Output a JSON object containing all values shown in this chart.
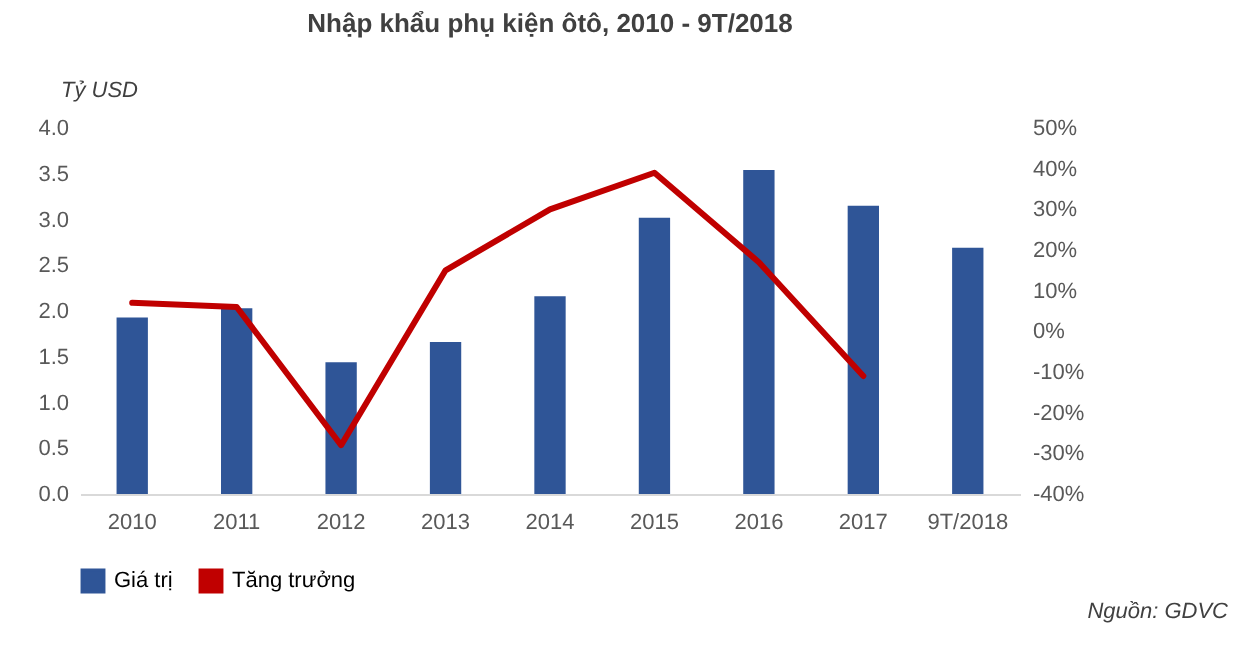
{
  "chart_data": {
    "type": "bar",
    "title": "Nhập khẩu phụ kiện ôtô, 2010 - 9T/2018",
    "ylabel": "Tỷ USD",
    "categories": [
      "2010",
      "2011",
      "2012",
      "2013",
      "2014",
      "2015",
      "2016",
      "2017",
      "9T/2018"
    ],
    "series": [
      {
        "name": "Giá trị",
        "color": "#2f5597",
        "values": [
          1.93,
          2.03,
          1.44,
          1.66,
          2.16,
          3.02,
          3.54,
          3.15,
          2.69
        ]
      },
      {
        "name": "Tăng trưởng",
        "type": "line",
        "axis": "y2",
        "color": "#c00000",
        "values": [
          7,
          6,
          -28,
          15,
          30,
          39,
          17,
          -11,
          null
        ]
      }
    ],
    "ylim": [
      0,
      4
    ],
    "yticks": [
      {
        "value": 0,
        "label": "0.0"
      },
      {
        "value": 0.5,
        "label": "0.5"
      },
      {
        "value": 1,
        "label": "1.0"
      },
      {
        "value": 1.5,
        "label": "1.5"
      },
      {
        "value": 2,
        "label": "2.0"
      },
      {
        "value": 2.5,
        "label": "2.5"
      },
      {
        "value": 3,
        "label": "3.0"
      },
      {
        "value": 3.5,
        "label": "3.5"
      },
      {
        "value": 4,
        "label": "4.0"
      }
    ],
    "y2lim": [
      -40,
      50
    ],
    "y2ticks": [
      {
        "value": -40,
        "label": "-40%"
      },
      {
        "value": -30,
        "label": "-30%"
      },
      {
        "value": -20,
        "label": "-20%"
      },
      {
        "value": -10,
        "label": "-10%"
      },
      {
        "value": 0,
        "label": "0%"
      },
      {
        "value": 10,
        "label": "10%"
      },
      {
        "value": 20,
        "label": "20%"
      },
      {
        "value": 30,
        "label": "30%"
      },
      {
        "value": 40,
        "label": "40%"
      },
      {
        "value": 50,
        "label": "50%"
      }
    ],
    "grid": false,
    "legend": "bottom",
    "marker": "none",
    "line_style": "solid",
    "annotations": [
      "Nguồn: GDVC"
    ]
  }
}
